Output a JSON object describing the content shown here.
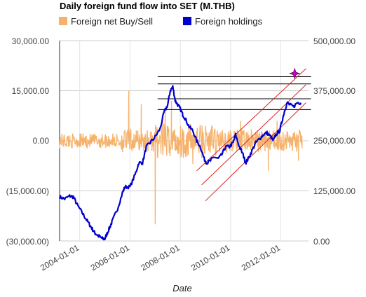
{
  "chart_data": {
    "type": "line",
    "title": "Daily foreign fund flow into SET (M.THB)",
    "xlabel": "Date",
    "x_ticks": [
      "2004-01-01",
      "2006-01-01",
      "2008-01-01",
      "2010-01-01",
      "2012-01-01"
    ],
    "y_left": {
      "ticks": [
        30000,
        15000,
        0,
        -15000,
        -30000
      ],
      "tick_labels": [
        "30,000.00",
        "15,000.00",
        "0.00",
        "(15,000.00)",
        "(30,000.00)"
      ],
      "range": [
        -30000,
        30000
      ]
    },
    "y_right": {
      "ticks": [
        500000,
        375000,
        250000,
        125000,
        0
      ],
      "tick_labels": [
        "500,000.00",
        "375,000.00",
        "250,000.00",
        "125,000.00",
        "0.00"
      ],
      "range": [
        0,
        500000
      ]
    },
    "legend_position": "top",
    "series": [
      {
        "name": "Foreign net Buy/Sell",
        "color": "#f6b26b",
        "axis": "left",
        "style": "dense-noise",
        "spikes": [
          {
            "x": 2005.95,
            "y": 15000
          },
          {
            "x": 2006.45,
            "y": 11000
          },
          {
            "x": 2007.0,
            "y": -25000
          },
          {
            "x": 2007.4,
            "y": 9000
          },
          {
            "x": 2007.65,
            "y": 12000
          },
          {
            "x": 2008.5,
            "y": -7000
          },
          {
            "x": 2010.4,
            "y": 6000
          },
          {
            "x": 2011.5,
            "y": -9000
          },
          {
            "x": 2011.85,
            "y": 6000
          },
          {
            "x": 2012.7,
            "y": -6000
          }
        ]
      },
      {
        "name": "Foreign holdings",
        "color": "#0000cc",
        "axis": "right",
        "points": [
          [
            2003.2,
            110000
          ],
          [
            2003.4,
            105000
          ],
          [
            2003.6,
            112000
          ],
          [
            2003.75,
            110000
          ],
          [
            2003.9,
            90000
          ],
          [
            2004.1,
            70000
          ],
          [
            2004.25,
            55000
          ],
          [
            2004.4,
            40000
          ],
          [
            2004.5,
            30000
          ],
          [
            2004.6,
            20000
          ],
          [
            2004.7,
            15000
          ],
          [
            2004.8,
            10000
          ],
          [
            2004.9,
            6000
          ],
          [
            2005.0,
            5000
          ],
          [
            2005.1,
            20000
          ],
          [
            2005.2,
            35000
          ],
          [
            2005.3,
            50000
          ],
          [
            2005.5,
            80000
          ],
          [
            2005.7,
            120000
          ],
          [
            2005.8,
            135000
          ],
          [
            2006.0,
            135000
          ],
          [
            2006.2,
            165000
          ],
          [
            2006.35,
            195000
          ],
          [
            2006.5,
            195000
          ],
          [
            2006.65,
            235000
          ],
          [
            2006.8,
            245000
          ],
          [
            2007.0,
            260000
          ],
          [
            2007.2,
            280000
          ],
          [
            2007.35,
            320000
          ],
          [
            2007.5,
            340000
          ],
          [
            2007.6,
            375000
          ],
          [
            2007.7,
            385000
          ],
          [
            2007.8,
            350000
          ],
          [
            2007.9,
            340000
          ],
          [
            2008.0,
            330000
          ],
          [
            2008.1,
            315000
          ],
          [
            2008.2,
            305000
          ],
          [
            2008.35,
            285000
          ],
          [
            2008.5,
            275000
          ],
          [
            2008.65,
            250000
          ],
          [
            2008.8,
            235000
          ],
          [
            2008.95,
            205000
          ],
          [
            2009.05,
            195000
          ],
          [
            2009.2,
            200000
          ],
          [
            2009.35,
            210000
          ],
          [
            2009.5,
            205000
          ],
          [
            2009.65,
            215000
          ],
          [
            2009.8,
            235000
          ],
          [
            2009.95,
            235000
          ],
          [
            2010.1,
            245000
          ],
          [
            2010.2,
            265000
          ],
          [
            2010.35,
            235000
          ],
          [
            2010.5,
            215000
          ],
          [
            2010.6,
            195000
          ],
          [
            2010.7,
            205000
          ],
          [
            2010.85,
            225000
          ],
          [
            2011.0,
            245000
          ],
          [
            2011.15,
            255000
          ],
          [
            2011.3,
            265000
          ],
          [
            2011.45,
            270000
          ],
          [
            2011.6,
            260000
          ],
          [
            2011.7,
            250000
          ],
          [
            2011.8,
            265000
          ],
          [
            2011.95,
            275000
          ],
          [
            2012.05,
            300000
          ],
          [
            2012.15,
            325000
          ],
          [
            2012.25,
            345000
          ],
          [
            2012.35,
            340000
          ],
          [
            2012.5,
            335000
          ],
          [
            2012.65,
            345000
          ],
          [
            2012.8,
            345000
          ]
        ]
      }
    ],
    "overlays": {
      "horizontal_lines": [
        {
          "y": 410000,
          "x_start": 2007.1,
          "x_end": 2013.2
        },
        {
          "y": 392000,
          "x_start": 2007.1,
          "x_end": 2013.2
        },
        {
          "y": 355000,
          "x_start": 2007.1,
          "x_end": 2013.2
        },
        {
          "y": 328000,
          "x_start": 2007.1,
          "x_end": 2013.2
        }
      ],
      "trend_channel": [
        {
          "start": [
            2008.65,
            175000
          ],
          "end": [
            2013.0,
            430000
          ]
        },
        {
          "start": [
            2008.85,
            140000
          ],
          "end": [
            2013.0,
            390000
          ]
        },
        {
          "start": [
            2009.0,
            100000
          ],
          "end": [
            2013.0,
            345000
          ]
        }
      ],
      "marker": {
        "x": 2012.55,
        "y": 418000,
        "color": "#cc00cc"
      }
    }
  }
}
